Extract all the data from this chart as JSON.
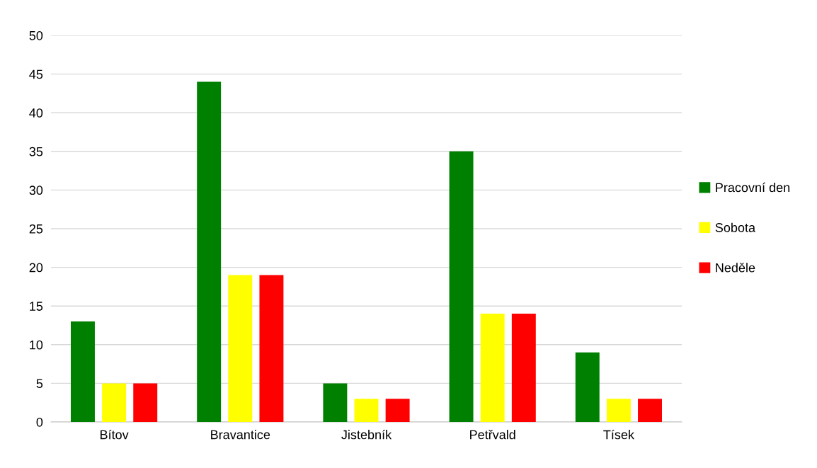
{
  "chart_data": {
    "type": "bar",
    "categories": [
      "Bítov",
      "Bravantice",
      "Jistebník",
      "Petřvald",
      "Tísek"
    ],
    "series": [
      {
        "name": "Pracovní den",
        "color": "#008000",
        "values": [
          13,
          44,
          5,
          35,
          9
        ]
      },
      {
        "name": "Sobota",
        "color": "#ffff00",
        "values": [
          5,
          19,
          3,
          14,
          3
        ]
      },
      {
        "name": "Neděle",
        "color": "#ff0000",
        "values": [
          5,
          19,
          3,
          14,
          3
        ]
      }
    ],
    "ylim": [
      0,
      50
    ],
    "yticks": [
      0,
      5,
      10,
      15,
      20,
      25,
      30,
      35,
      40,
      45,
      50
    ],
    "grid": "y",
    "legend": "right"
  }
}
